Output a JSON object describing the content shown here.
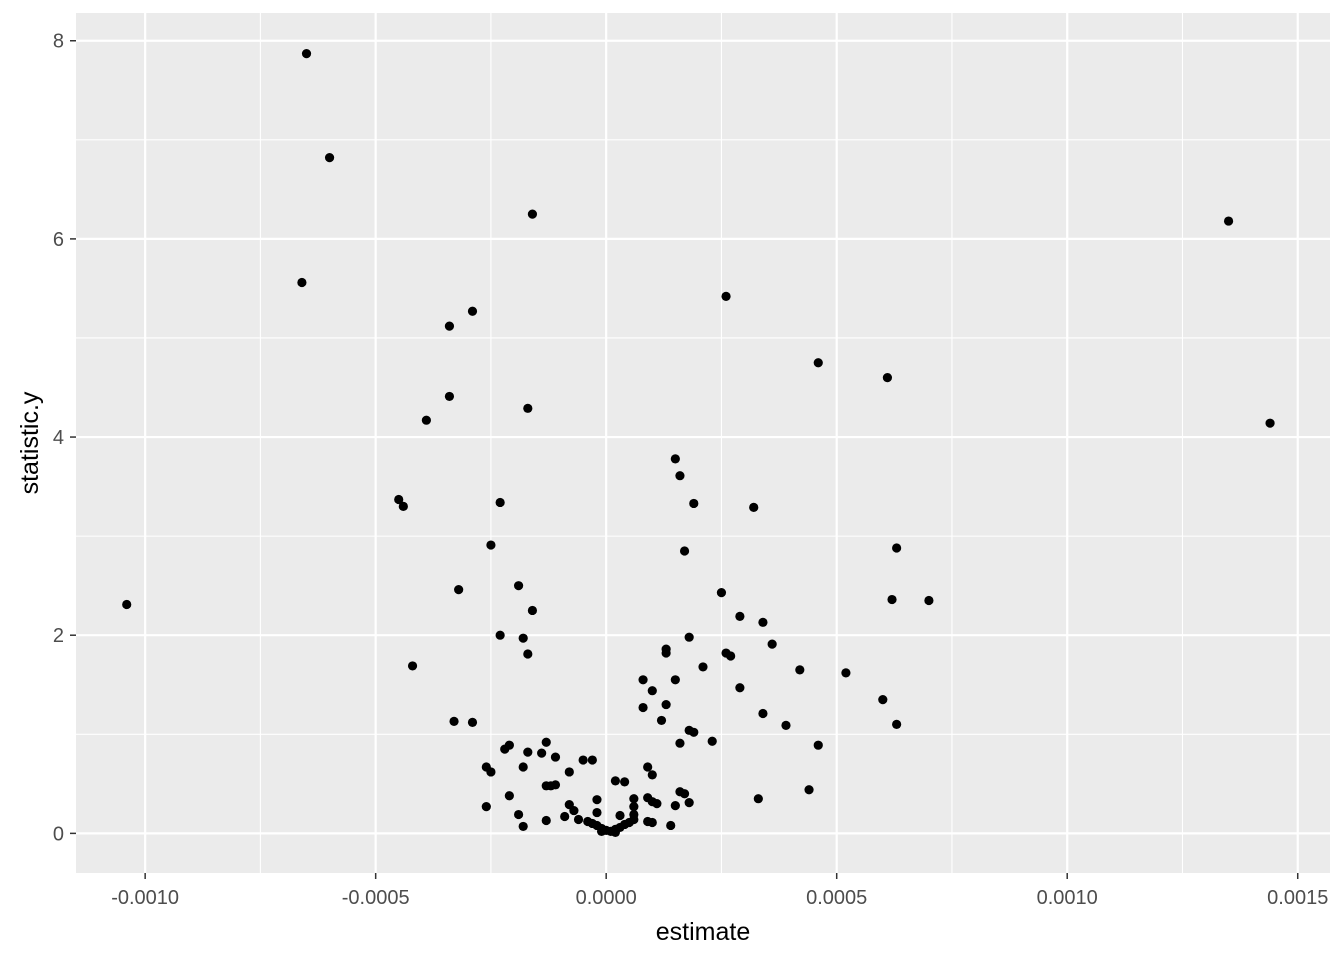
{
  "chart_data": {
    "type": "scatter",
    "title": "",
    "xlabel": "estimate",
    "ylabel": "statistic.y",
    "xlim": [
      -0.00115,
      0.00157
    ],
    "ylim": [
      -0.4,
      8.28
    ],
    "x_ticks": [
      -0.001,
      -0.0005,
      0.0,
      0.0005,
      0.001,
      0.0015
    ],
    "x_tick_labels": [
      "-0.0010",
      "-0.0005",
      "0.0000",
      "0.0005",
      "0.0010",
      "0.0015"
    ],
    "y_ticks": [
      0,
      2,
      4,
      6,
      8
    ],
    "y_tick_labels": [
      "0",
      "2",
      "4",
      "6",
      "8"
    ],
    "grid": true,
    "legend": "none",
    "colors": {
      "panel": "#ebebeb",
      "grid": "#ffffff",
      "point": "#000000",
      "tick": "#333333"
    },
    "points": [
      [
        -0.00104,
        2.31
      ],
      [
        -0.00065,
        7.87
      ],
      [
        -0.0006,
        6.82
      ],
      [
        -0.00066,
        5.56
      ],
      [
        -0.00016,
        6.25
      ],
      [
        -0.00034,
        5.12
      ],
      [
        -0.00029,
        5.27
      ],
      [
        -0.00034,
        4.41
      ],
      [
        -0.00039,
        4.17
      ],
      [
        -0.00017,
        4.29
      ],
      [
        -0.00045,
        3.37
      ],
      [
        -0.00044,
        3.3
      ],
      [
        -0.00023,
        3.34
      ],
      [
        -0.00025,
        2.91
      ],
      [
        -0.00019,
        2.5
      ],
      [
        -0.00032,
        2.46
      ],
      [
        -0.00016,
        2.25
      ],
      [
        -0.00023,
        2.0
      ],
      [
        -0.00018,
        1.97
      ],
      [
        -0.00017,
        1.81
      ],
      [
        -0.00042,
        1.69
      ],
      [
        -0.00033,
        1.13
      ],
      [
        -0.00029,
        1.12
      ],
      [
        -0.00013,
        0.92
      ],
      [
        -0.00021,
        0.89
      ],
      [
        -0.00022,
        0.85
      ],
      [
        -0.00017,
        0.82
      ],
      [
        -0.00014,
        0.81
      ],
      [
        -0.00011,
        0.77
      ],
      [
        -5e-05,
        0.74
      ],
      [
        -3e-05,
        0.74
      ],
      [
        -0.00026,
        0.67
      ],
      [
        -0.00018,
        0.67
      ],
      [
        -0.00025,
        0.62
      ],
      [
        -8e-05,
        0.62
      ],
      [
        -0.00013,
        0.48
      ],
      [
        -0.00011,
        0.49
      ],
      [
        -0.00012,
        0.48
      ],
      [
        -0.00021,
        0.38
      ],
      [
        -0.00026,
        0.27
      ],
      [
        -2e-05,
        0.34
      ],
      [
        -8e-05,
        0.29
      ],
      [
        -7e-05,
        0.23
      ],
      [
        -0.00019,
        0.19
      ],
      [
        -2e-05,
        0.21
      ],
      [
        -9e-05,
        0.17
      ],
      [
        -0.00013,
        0.13
      ],
      [
        -6e-05,
        0.14
      ],
      [
        -4e-05,
        0.12
      ],
      [
        -3e-05,
        0.1
      ],
      [
        -2e-05,
        0.08
      ],
      [
        -1e-05,
        0.05
      ],
      [
        0.0,
        0.03
      ],
      [
        1e-05,
        0.02
      ],
      [
        2e-05,
        0.04
      ],
      [
        -1e-05,
        0.02
      ],
      [
        2e-05,
        0.01
      ],
      [
        3e-05,
        0.06
      ],
      [
        4e-05,
        0.09
      ],
      [
        5e-05,
        0.11
      ],
      [
        3e-05,
        0.18
      ],
      [
        6e-05,
        0.19
      ],
      [
        -0.00018,
        0.07
      ],
      [
        0.00014,
        0.08
      ],
      [
        0.0001,
        0.11
      ],
      [
        9e-05,
        0.12
      ],
      [
        6e-05,
        0.14
      ],
      [
        2e-05,
        0.53
      ],
      [
        4e-05,
        0.52
      ],
      [
        9e-05,
        0.67
      ],
      [
        0.0001,
        0.59
      ],
      [
        6e-05,
        0.35
      ],
      [
        9e-05,
        0.36
      ],
      [
        0.0001,
        0.32
      ],
      [
        0.00011,
        0.3
      ],
      [
        6e-05,
        0.27
      ],
      [
        0.00016,
        0.42
      ],
      [
        0.00017,
        0.4
      ],
      [
        0.00018,
        0.31
      ],
      [
        0.00015,
        0.28
      ],
      [
        0.00015,
        3.78
      ],
      [
        0.00016,
        3.61
      ],
      [
        0.00017,
        2.85
      ],
      [
        0.00019,
        3.33
      ],
      [
        0.00018,
        1.98
      ],
      [
        0.00013,
        1.86
      ],
      [
        0.00013,
        1.82
      ],
      [
        0.00021,
        1.68
      ],
      [
        0.00015,
        1.55
      ],
      [
        8e-05,
        1.55
      ],
      [
        0.0001,
        1.44
      ],
      [
        0.00013,
        1.3
      ],
      [
        8e-05,
        1.27
      ],
      [
        0.00012,
        1.14
      ],
      [
        0.00018,
        1.04
      ],
      [
        0.00019,
        1.02
      ],
      [
        0.00016,
        0.91
      ],
      [
        0.00023,
        0.93
      ],
      [
        0.00026,
        5.42
      ],
      [
        0.00032,
        3.29
      ],
      [
        0.00025,
        2.43
      ],
      [
        0.00029,
        2.19
      ],
      [
        0.00034,
        2.13
      ],
      [
        0.00036,
        1.91
      ],
      [
        0.00026,
        1.82
      ],
      [
        0.00027,
        1.79
      ],
      [
        0.00029,
        1.47
      ],
      [
        0.00034,
        1.21
      ],
      [
        0.00039,
        1.09
      ],
      [
        0.00042,
        1.65
      ],
      [
        0.00033,
        0.35
      ],
      [
        0.00046,
        4.75
      ],
      [
        0.00061,
        4.6
      ],
      [
        0.00063,
        2.88
      ],
      [
        0.00062,
        2.36
      ],
      [
        0.0007,
        2.35
      ],
      [
        0.00052,
        1.62
      ],
      [
        0.0006,
        1.35
      ],
      [
        0.00063,
        1.1
      ],
      [
        0.00046,
        0.89
      ],
      [
        0.00044,
        0.44
      ],
      [
        0.00135,
        6.18
      ],
      [
        0.00144,
        4.14
      ]
    ]
  }
}
